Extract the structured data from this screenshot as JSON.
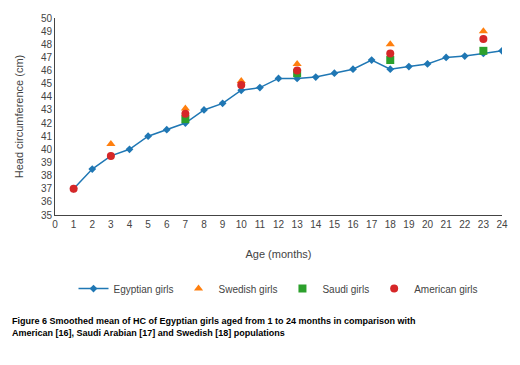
{
  "chart_data": {
    "type": "line",
    "x_label": "Age (months)",
    "y_label": "Head circumference (cm)",
    "annotations": [
      "Figure 6 Smoothed mean of HC of Egyptian girls aged from 1 to 24 months in comparison with",
      "American [16], Saudi Arabian [17] and Swedish [18] populations"
    ],
    "series": [
      {
        "name": "Egyptian girls",
        "type": "line",
        "marker": "diamond",
        "line_style": "solid",
        "x": [
          1,
          2,
          3,
          4,
          5,
          6,
          7,
          8,
          9,
          10,
          11,
          12,
          13,
          14,
          15,
          16,
          17,
          18,
          19,
          20,
          21,
          22,
          23,
          24
        ],
        "values": [
          37.0,
          38.5,
          39.5,
          40.0,
          41.0,
          41.5,
          42.0,
          43.0,
          43.5,
          44.5,
          44.7,
          45.4,
          45.4,
          45.5,
          45.8,
          46.1,
          46.8,
          46.1,
          46.3,
          46.5,
          47.0,
          47.1,
          47.3,
          47.5
        ]
      },
      {
        "name": "Swedish girls",
        "type": "scatter",
        "marker": "triangle-up",
        "line_style": "none",
        "x": [
          3,
          7,
          10,
          13,
          18,
          23
        ],
        "values": [
          40.4,
          43.1,
          45.2,
          46.5,
          48.0,
          49.0
        ]
      },
      {
        "name": "Saudi girls",
        "type": "scatter",
        "marker": "square",
        "line_style": "none",
        "x": [
          7,
          13,
          18,
          23
        ],
        "values": [
          42.3,
          45.8,
          46.8,
          47.5
        ]
      },
      {
        "name": "American girls",
        "type": "scatter",
        "marker": "circle",
        "line_style": "none",
        "x": [
          1,
          3,
          7,
          10,
          13,
          18,
          23
        ],
        "values": [
          37.0,
          39.5,
          42.7,
          44.9,
          46.0,
          47.3,
          48.4
        ]
      }
    ],
    "xlim": [
      0,
      24
    ],
    "xticks": [
      0,
      1,
      2,
      3,
      4,
      5,
      6,
      7,
      8,
      9,
      10,
      11,
      12,
      13,
      14,
      15,
      16,
      17,
      18,
      19,
      20,
      21,
      22,
      23,
      24
    ],
    "ylim": [
      35,
      50
    ],
    "yticks": [
      35,
      36,
      37,
      38,
      39,
      40,
      41,
      42,
      43,
      44,
      45,
      46,
      47,
      48,
      49,
      50
    ],
    "grid": false,
    "legend": "bottom"
  }
}
